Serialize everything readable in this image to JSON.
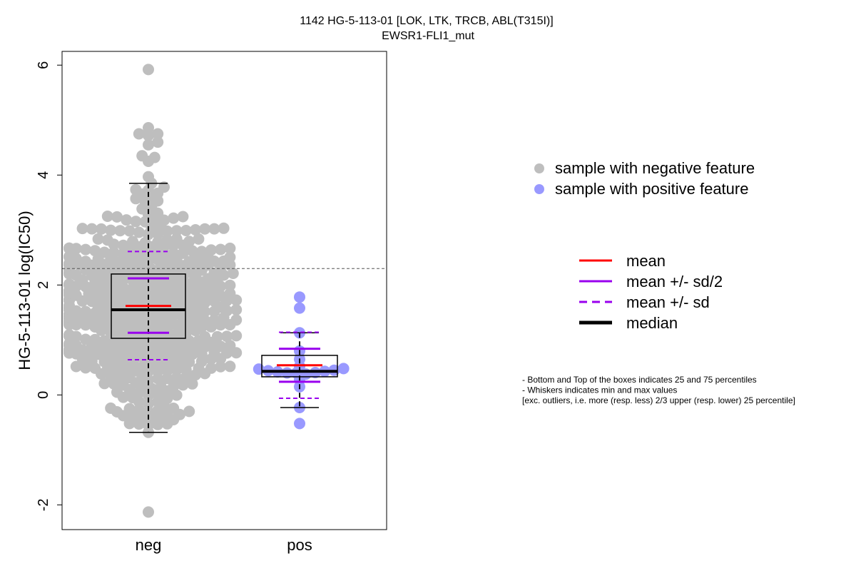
{
  "chart_data": {
    "type": "scatter",
    "title": "1142 HG-5-113-01 [LOK, LTK, TRCB, ABL(T315I)]",
    "subtitle": "EWSR1-FLI1_mut",
    "ylabel": "HG-5-113-01 log(IC50)",
    "xlabel": "",
    "ylim": [
      -2.45,
      6.25
    ],
    "yticks": [
      -2,
      0,
      2,
      4,
      6
    ],
    "threshold": 2.3,
    "categories": [
      "neg",
      "pos"
    ],
    "groups": [
      {
        "category": "neg",
        "color": "#bebebe",
        "n_points": 520,
        "points": [
          5.92,
          4.86,
          4.75,
          4.75,
          4.72,
          4.6,
          4.55,
          4.35,
          4.32,
          4.25,
          3.97,
          3.85,
          3.67,
          -2.13,
          -0.68,
          -0.55,
          -0.53,
          -0.52,
          -0.45,
          -0.43,
          -0.4,
          -0.38,
          -0.3,
          -0.25,
          -0.2,
          -0.12,
          -0.05,
          0.05,
          0.15,
          0.2
        ],
        "box": {
          "q1": 1.03,
          "median": 1.55,
          "q3": 2.2
        },
        "whiskers": [
          -0.68,
          3.85
        ],
        "mean": 1.62,
        "mean_sd2": [
          1.13,
          2.12
        ],
        "mean_sd": [
          0.64,
          2.61
        ]
      },
      {
        "category": "pos",
        "color": "#9999ff",
        "n_points": 20,
        "points": [
          1.78,
          1.58,
          1.13,
          0.8,
          0.65,
          0.52,
          0.48,
          0.47,
          0.45,
          0.44,
          0.43,
          0.42,
          0.4,
          0.4,
          0.38,
          0.28,
          0.15,
          -0.23,
          -0.52
        ],
        "box": {
          "q1": 0.33,
          "median": 0.43,
          "q3": 0.72
        },
        "whiskers": [
          -0.23,
          1.13
        ],
        "mean": 0.54,
        "mean_sd2": [
          0.24,
          0.84
        ],
        "mean_sd": [
          -0.06,
          1.14
        ]
      }
    ],
    "legend": {
      "placement": "right",
      "points": [
        {
          "label": "sample with negative feature",
          "color": "#bebebe"
        },
        {
          "label": "sample with positive feature",
          "color": "#9999ff"
        }
      ],
      "lines": [
        {
          "label": "mean",
          "color": "#ff0000",
          "style": "solid"
        },
        {
          "label": "mean +/- sd/2",
          "color": "#9900ee",
          "style": "solid"
        },
        {
          "label": "mean +/- sd",
          "color": "#9900ee",
          "style": "dashed"
        },
        {
          "label": "median",
          "color": "#000000",
          "style": "solid-thick"
        }
      ]
    },
    "notes": [
      "- Bottom and Top of the boxes indicates 25 and 75 percentiles",
      "- Whiskers indicates min and max values",
      "[exc. outliers, i.e. more (resp. less) 2/3 upper (resp. lower) 25 percentile]"
    ]
  }
}
